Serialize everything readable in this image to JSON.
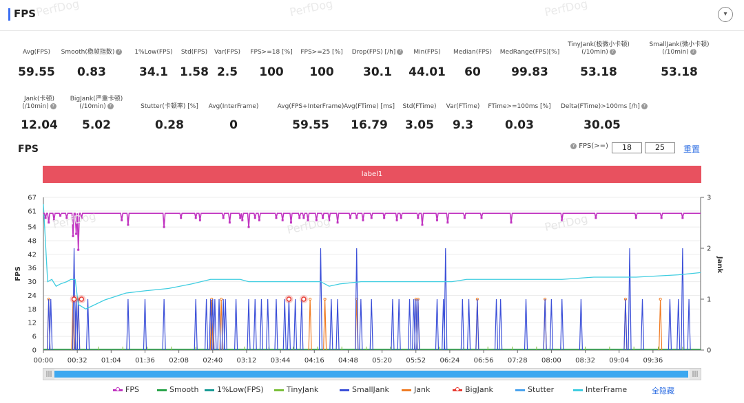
{
  "header": {
    "title": "FPS"
  },
  "watermark": "PerfDog",
  "metrics_row1": [
    {
      "label": "Avg(FPS)",
      "value": "59.55",
      "help": false
    },
    {
      "label": "Smooth(稳帧指数)",
      "value": "0.83",
      "help": true
    },
    {
      "label": "1%Low(FPS)",
      "value": "34.1",
      "help": false
    },
    {
      "label": "Std(FPS)",
      "value": "1.58",
      "help": false
    },
    {
      "label": "Var(FPS)",
      "value": "2.5",
      "help": false
    },
    {
      "label": "FPS>=18 [%]",
      "value": "100",
      "help": false
    },
    {
      "label": "FPS>=25 [%]",
      "value": "100",
      "help": false
    },
    {
      "label": "Drop(FPS) [/h]",
      "value": "30.1",
      "help": true
    },
    {
      "label": "Min(FPS)",
      "value": "44.01",
      "help": false
    },
    {
      "label": "Median(FPS)",
      "value": "60",
      "help": false
    },
    {
      "label": "MedRange(FPS)[%]",
      "value": "99.83",
      "help": false
    },
    {
      "label": "TinyJank(极微小卡顿)\n(/10min)",
      "value": "53.18",
      "help": true
    },
    {
      "label": "SmallJank(微小卡顿)\n(/10min)",
      "value": "53.18",
      "help": true
    }
  ],
  "metrics_row2": [
    {
      "label": "Jank(卡顿)\n(/10min)",
      "value": "12.04",
      "help": true
    },
    {
      "label": "BigJank(严重卡顿)\n(/10min)",
      "value": "5.02",
      "help": true
    },
    {
      "label": "Stutter(卡顿率) [%]",
      "value": "0.28",
      "help": false
    },
    {
      "label": "Avg(InterFrame)",
      "value": "0",
      "help": false
    },
    {
      "label": "Avg(FPS+InterFrame)",
      "value": "59.55",
      "help": false
    },
    {
      "label": "Avg(FTime) [ms]",
      "value": "16.79",
      "help": false
    },
    {
      "label": "Std(FTime)",
      "value": "3.05",
      "help": false
    },
    {
      "label": "Var(FTime)",
      "value": "9.3",
      "help": false
    },
    {
      "label": "FTime>=100ms [%]",
      "value": "0.03",
      "help": false
    },
    {
      "label": "Delta(FTime)>100ms [/h]",
      "value": "30.05",
      "help": true
    }
  ],
  "chart_section": {
    "title": "FPS",
    "fps_filter_label": "FPS(>=)",
    "fps_threshold_1": "18",
    "fps_threshold_2": "25",
    "reset_label": "重置",
    "label_band": "label1"
  },
  "legend": {
    "hide_all": "全隐藏"
  },
  "chart_data": {
    "type": "line",
    "ylabel": "FPS",
    "y2label": "Jank",
    "ylim": [
      0,
      67
    ],
    "y2lim": [
      0,
      3
    ],
    "yticks": [
      0,
      6,
      12,
      18,
      24,
      30,
      36,
      42,
      48,
      54,
      61,
      67
    ],
    "y2ticks": [
      0,
      1,
      2,
      3
    ],
    "xlim_seconds": [
      0,
      621
    ],
    "xticks": [
      "00:00",
      "00:32",
      "01:04",
      "01:36",
      "02:08",
      "02:40",
      "03:12",
      "03:44",
      "04:16",
      "04:48",
      "05:20",
      "05:52",
      "06:24",
      "06:56",
      "07:28",
      "08:00",
      "08:32",
      "09:04",
      "09:36"
    ],
    "series": [
      {
        "name": "FPS",
        "color": "#c034c0",
        "baseline": 60,
        "dips": [
          [
            2,
            58
          ],
          [
            5,
            56
          ],
          [
            10,
            57
          ],
          [
            16,
            59
          ],
          [
            22,
            58
          ],
          [
            28,
            50
          ],
          [
            31,
            51
          ],
          [
            33,
            44
          ],
          [
            36,
            58
          ],
          [
            74,
            57
          ],
          [
            80,
            55
          ],
          [
            114,
            54
          ],
          [
            130,
            58
          ],
          [
            144,
            58
          ],
          [
            148,
            57
          ],
          [
            170,
            58
          ],
          [
            176,
            56
          ],
          [
            186,
            58
          ],
          [
            188,
            57
          ],
          [
            194,
            54
          ],
          [
            200,
            58
          ],
          [
            204,
            57
          ],
          [
            220,
            58
          ],
          [
            226,
            57
          ],
          [
            234,
            56
          ],
          [
            242,
            58
          ],
          [
            246,
            58
          ],
          [
            250,
            57
          ],
          [
            258,
            57
          ],
          [
            264,
            58
          ],
          [
            270,
            57
          ],
          [
            278,
            56
          ],
          [
            290,
            58
          ],
          [
            296,
            58
          ],
          [
            302,
            57
          ],
          [
            310,
            58
          ],
          [
            322,
            58
          ],
          [
            334,
            57
          ],
          [
            338,
            58
          ],
          [
            354,
            58
          ],
          [
            358,
            55
          ],
          [
            372,
            57
          ],
          [
            382,
            56
          ],
          [
            398,
            58
          ],
          [
            414,
            58
          ],
          [
            442,
            56
          ],
          [
            490,
            57
          ],
          [
            522,
            58
          ],
          [
            560,
            58
          ],
          [
            584,
            58
          ],
          [
            604,
            58
          ]
        ]
      },
      {
        "name": "Smooth",
        "color": "#2aa44a"
      },
      {
        "name": "1%Low(FPS)",
        "color": "#1a9c96"
      },
      {
        "name": "TinyJank",
        "color": "#7bbf3a"
      },
      {
        "name": "SmallJank",
        "color": "#3b4fd8",
        "spikes": [
          [
            5,
            1
          ],
          [
            7,
            1
          ],
          [
            29,
            2
          ],
          [
            31,
            1
          ],
          [
            33,
            1
          ],
          [
            42,
            1
          ],
          [
            80,
            1
          ],
          [
            96,
            1
          ],
          [
            114,
            1
          ],
          [
            144,
            1
          ],
          [
            154,
            1
          ],
          [
            158,
            1
          ],
          [
            160,
            1
          ],
          [
            162,
            1
          ],
          [
            166,
            1
          ],
          [
            170,
            1
          ],
          [
            172,
            1
          ],
          [
            182,
            1
          ],
          [
            194,
            1
          ],
          [
            200,
            1
          ],
          [
            206,
            1
          ],
          [
            212,
            1
          ],
          [
            220,
            1
          ],
          [
            228,
            1
          ],
          [
            232,
            1
          ],
          [
            238,
            1
          ],
          [
            244,
            1
          ],
          [
            262,
            2
          ],
          [
            272,
            1
          ],
          [
            278,
            1
          ],
          [
            296,
            2
          ],
          [
            300,
            1
          ],
          [
            310,
            1
          ],
          [
            330,
            1
          ],
          [
            336,
            1
          ],
          [
            346,
            1
          ],
          [
            350,
            1
          ],
          [
            352,
            1
          ],
          [
            354,
            1
          ],
          [
            372,
            1
          ],
          [
            378,
            1
          ],
          [
            380,
            2
          ],
          [
            396,
            1
          ],
          [
            402,
            1
          ],
          [
            410,
            1
          ],
          [
            428,
            1
          ],
          [
            432,
            1
          ],
          [
            456,
            1
          ],
          [
            474,
            1
          ],
          [
            480,
            1
          ],
          [
            490,
            1
          ],
          [
            508,
            1
          ],
          [
            550,
            1
          ],
          [
            554,
            2
          ],
          [
            566,
            1
          ],
          [
            592,
            1
          ],
          [
            600,
            1
          ],
          [
            604,
            2
          ],
          [
            610,
            1
          ]
        ]
      },
      {
        "name": "Jank",
        "color": "#f07d25",
        "spikes": [
          [
            5,
            1
          ],
          [
            28,
            1
          ],
          [
            33,
            1
          ],
          [
            159,
            1
          ],
          [
            168,
            1
          ],
          [
            252,
            1
          ],
          [
            266,
            1
          ],
          [
            296,
            1
          ],
          [
            352,
            1
          ],
          [
            354,
            1
          ],
          [
            410,
            1
          ],
          [
            474,
            1
          ],
          [
            550,
            1
          ],
          [
            583,
            1
          ]
        ]
      },
      {
        "name": "BigJank",
        "color": "#e83c33",
        "points": [
          [
            29,
            1
          ],
          [
            36,
            1
          ],
          [
            232,
            1
          ],
          [
            246,
            1
          ]
        ]
      },
      {
        "name": "Stutter",
        "color": "#4aa3ee"
      },
      {
        "name": "InterFrame",
        "color": "#3fcde0",
        "points": [
          [
            0,
            64
          ],
          [
            4,
            30
          ],
          [
            8,
            31
          ],
          [
            12,
            28
          ],
          [
            16,
            29
          ],
          [
            22,
            30
          ],
          [
            26,
            31
          ],
          [
            30,
            31
          ],
          [
            33,
            20
          ],
          [
            40,
            18
          ],
          [
            58,
            22
          ],
          [
            78,
            25
          ],
          [
            96,
            26
          ],
          [
            118,
            27
          ],
          [
            140,
            29
          ],
          [
            158,
            31
          ],
          [
            176,
            31
          ],
          [
            186,
            31
          ],
          [
            194,
            30
          ],
          [
            200,
            30
          ],
          [
            212,
            30
          ],
          [
            232,
            30
          ],
          [
            252,
            30
          ],
          [
            262,
            30
          ],
          [
            270,
            28
          ],
          [
            280,
            29
          ],
          [
            300,
            30
          ],
          [
            340,
            30
          ],
          [
            360,
            30
          ],
          [
            386,
            30
          ],
          [
            400,
            31
          ],
          [
            430,
            31
          ],
          [
            460,
            31
          ],
          [
            490,
            31
          ],
          [
            520,
            32
          ],
          [
            560,
            32
          ],
          [
            600,
            33
          ],
          [
            621,
            34
          ]
        ]
      }
    ]
  }
}
